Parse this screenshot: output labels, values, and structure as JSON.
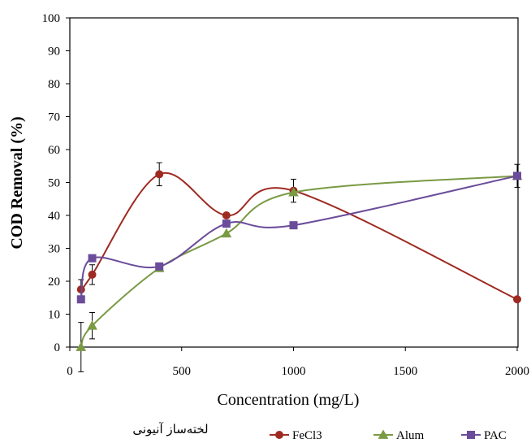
{
  "chart_data": {
    "type": "line",
    "title": "",
    "xlabel": "Concentration (mg/L)",
    "ylabel": "COD  Removal (%)",
    "xlim": [
      0,
      2000
    ],
    "ylim": [
      0,
      100
    ],
    "xticks": [
      0,
      500,
      1000,
      1500,
      2000
    ],
    "yticks": [
      0,
      10,
      20,
      30,
      40,
      50,
      60,
      70,
      80,
      90,
      100
    ],
    "grid": false,
    "legend_position": "bottom",
    "legend_caption": "لخته‌ساز آنیونی",
    "series": [
      {
        "name": "FeCl3",
        "color": "#9e2a22",
        "marker": "circle",
        "x": [
          50,
          100,
          400,
          700,
          1000,
          2000
        ],
        "y": [
          17.5,
          22,
          52.5,
          40,
          47.5,
          14.5
        ],
        "err": [
          3,
          3,
          3.5,
          0,
          3.5,
          0
        ]
      },
      {
        "name": "Alum",
        "color": "#7a9a44",
        "marker": "triangle",
        "x": [
          50,
          100,
          400,
          700,
          1000,
          2000
        ],
        "y": [
          0,
          6.5,
          24,
          34.5,
          47,
          52
        ],
        "err": [
          7.5,
          4,
          0,
          0,
          0,
          0
        ]
      },
      {
        "name": "PAC",
        "color": "#6b4c9a",
        "marker": "square",
        "x": [
          50,
          100,
          400,
          700,
          1000,
          2000
        ],
        "y": [
          14.5,
          27,
          24.5,
          37.5,
          37,
          52
        ],
        "err": [
          0,
          0,
          0,
          0,
          0,
          3.5
        ]
      }
    ]
  }
}
